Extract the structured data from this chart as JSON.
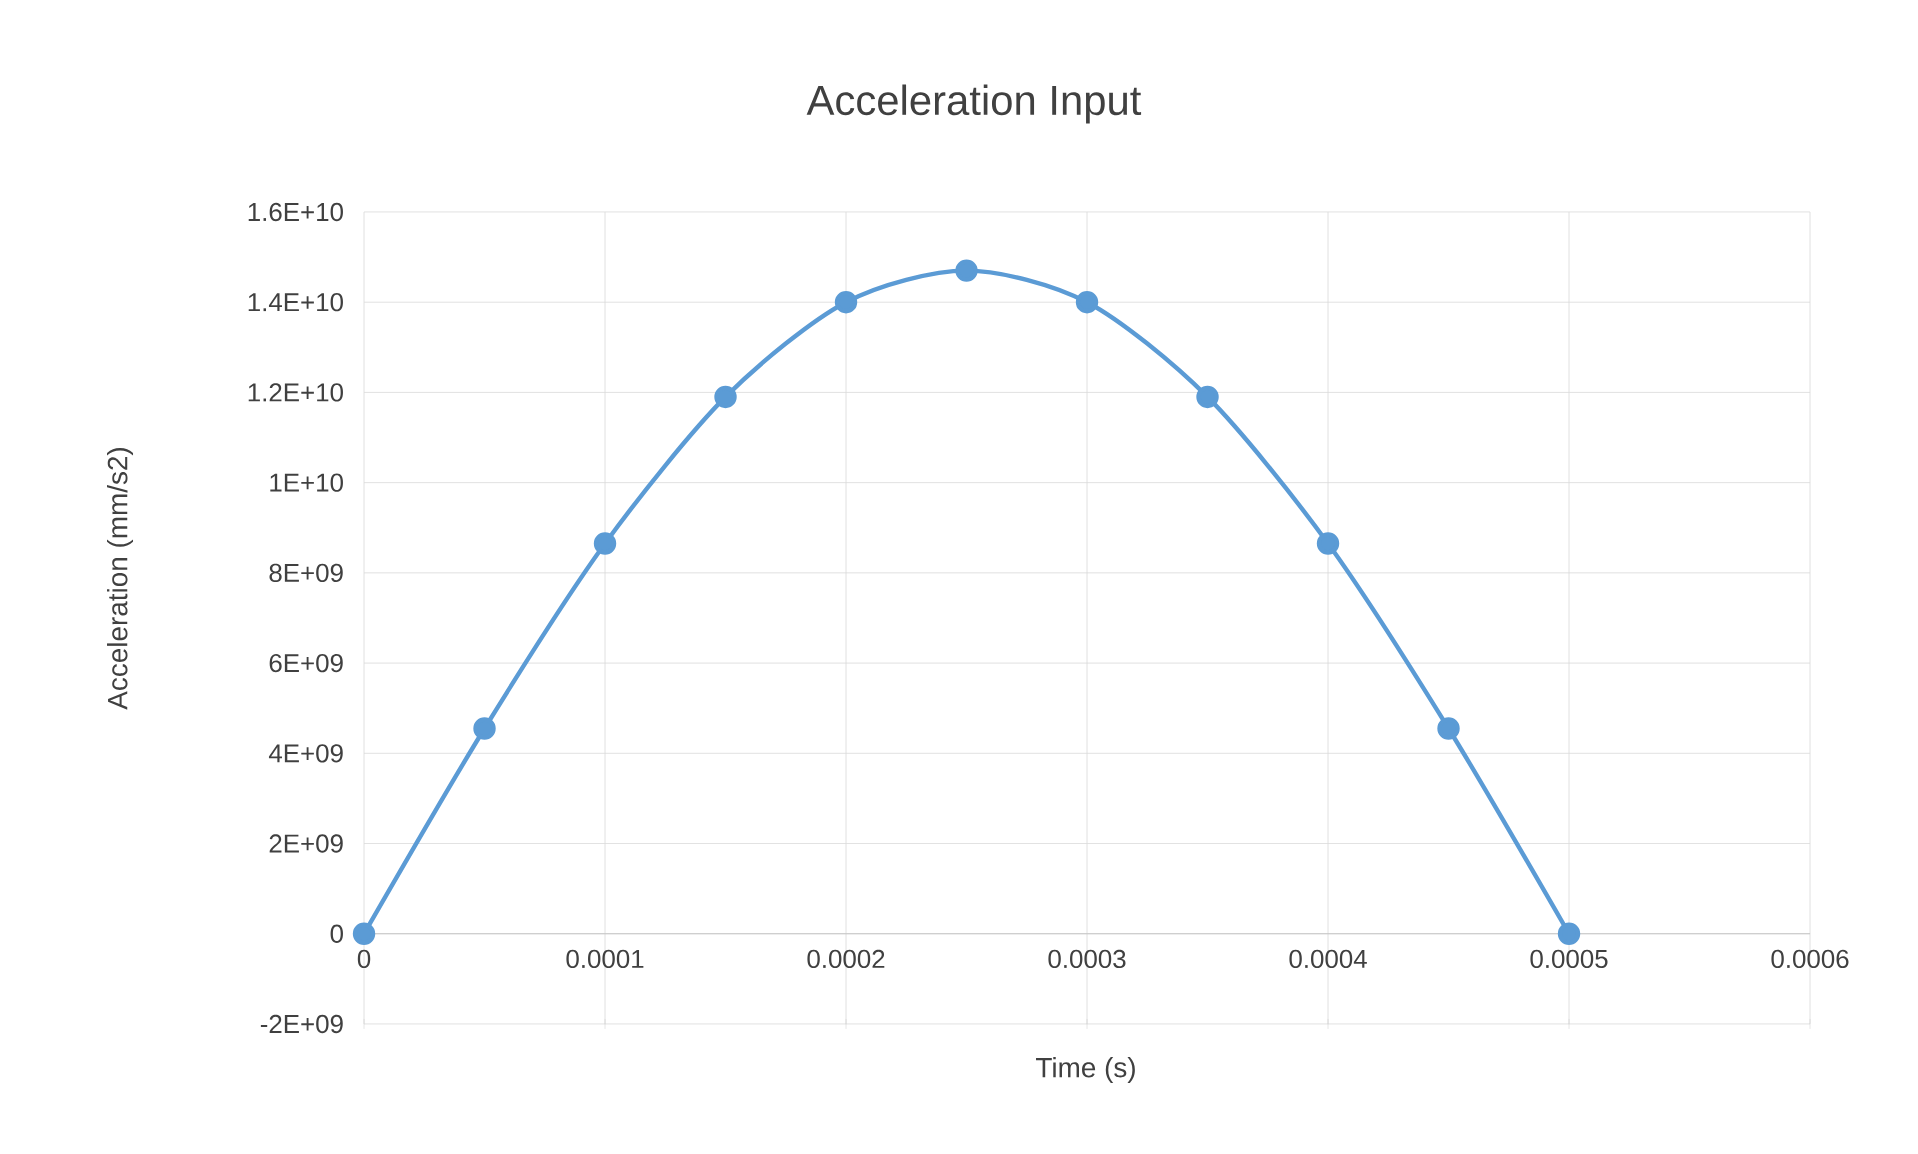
{
  "chart_data": {
    "type": "line",
    "title": "Acceleration Input",
    "xlabel": "Time (s)",
    "ylabel": "Acceleration (mm/s2)",
    "x": [
      0,
      5e-05,
      0.0001,
      0.00015,
      0.0002,
      0.00025,
      0.0003,
      0.00035,
      0.0004,
      0.00045,
      0.0005
    ],
    "series": [
      {
        "color": "#5b9bd5",
        "values": [
          0,
          4550000000.0,
          8650000000.0,
          11900000000.0,
          14000000000.0,
          14700000000.0,
          14000000000.0,
          11900000000.0,
          8650000000.0,
          4550000000.0,
          0
        ]
      }
    ],
    "xlim": [
      0,
      0.0006
    ],
    "xticks": [
      0,
      0.0001,
      0.0002,
      0.0003,
      0.0004,
      0.0005,
      0.0006
    ],
    "ylim": [
      -2000000000.0,
      16000000000.0
    ],
    "yticks": [
      {
        "value": -2000000000.0,
        "label": "-2E+09"
      },
      {
        "value": 0,
        "label": "0"
      },
      {
        "value": 2000000000.0,
        "label": "2E+09"
      },
      {
        "value": 4000000000.0,
        "label": "4E+09"
      },
      {
        "value": 6000000000.0,
        "label": "6E+09"
      },
      {
        "value": 8000000000.0,
        "label": "8E+09"
      },
      {
        "value": 10000000000.0,
        "label": "1E+10"
      },
      {
        "value": 12000000000.0,
        "label": "1.2E+10"
      },
      {
        "value": 14000000000.0,
        "label": "1.4E+10"
      },
      {
        "value": 16000000000.0,
        "label": "1.6E+10"
      }
    ],
    "grid": true,
    "marker": "circle",
    "line_style": "solid"
  }
}
